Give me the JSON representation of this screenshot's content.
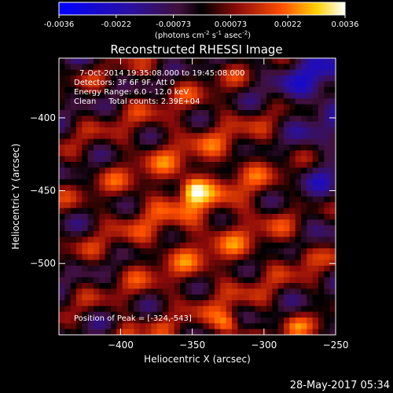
{
  "colorbar": {
    "ticks": [
      "-0.0036",
      "-0.0022",
      "-0.00073",
      "0.00073",
      "0.0022",
      "0.0036"
    ],
    "units_main": "(photons cm",
    "units_exp1": "-2",
    "units_mid": " s",
    "units_exp2": "-1",
    "units_end": " asec",
    "units_exp3": "-2",
    "units_close": ")"
  },
  "title": "Reconstructed RHESSI Image",
  "annotations": [
    "7-Oct-2014 19:35:08.000 to 19:45:08.000",
    "Detectors: 3F 6F 9F, Att 0",
    "Energy Range: 6.0 - 12.0 keV",
    "Clean     Total counts: 2.39E+04"
  ],
  "peak_label": "Position of Peak = [-324,-543]",
  "footer_date": "28-May-2017 05:34",
  "chart_data": {
    "type": "heatmap",
    "title": "Reconstructed RHESSI Image",
    "xlabel": "Heliocentric X (arcsec)",
    "ylabel": "Heliocentric Y (arcsec)",
    "xlim": [
      -443,
      -250
    ],
    "ylim": [
      -549,
      -359
    ],
    "x_ticks": [
      -400,
      -350,
      -300,
      -250
    ],
    "y_ticks": [
      -400,
      -450,
      -500
    ],
    "x_tick_labels": [
      "−400",
      "−350",
      "−300",
      "−250"
    ],
    "y_tick_labels": [
      "−400",
      "−450",
      "−500"
    ],
    "color_range": [
      -0.0036,
      0.0036
    ],
    "colormap": "blue-purple-red-yellow-white",
    "peak_position": [
      -324,
      -543
    ],
    "bright_spots": [
      {
        "x": -350,
        "y": -450,
        "v": 0.0035
      },
      {
        "x": -325,
        "y": -542,
        "v": 0.0034
      },
      {
        "x": -270,
        "y": -495,
        "v": 0.0026
      },
      {
        "x": -395,
        "y": -548,
        "v": 0.0025
      },
      {
        "x": -280,
        "y": -545,
        "v": 0.0024
      }
    ]
  }
}
